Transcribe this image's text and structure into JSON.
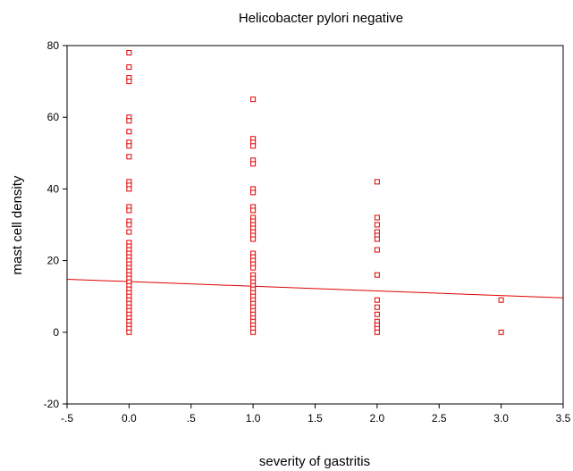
{
  "chart_data": {
    "type": "scatter",
    "title": "Helicobacter pylori negative",
    "xlabel": "severity of gastritis",
    "ylabel": "mast cell density",
    "xlim": [
      -0.5,
      3.5
    ],
    "ylim": [
      -20,
      80
    ],
    "x_ticks": [
      {
        "value": -0.5,
        "label": "-.5"
      },
      {
        "value": 0.0,
        "label": "0.0"
      },
      {
        "value": 0.5,
        "label": ".5"
      },
      {
        "value": 1.0,
        "label": "1.0"
      },
      {
        "value": 1.5,
        "label": "1.5"
      },
      {
        "value": 2.0,
        "label": "2.0"
      },
      {
        "value": 2.5,
        "label": "2.5"
      },
      {
        "value": 3.0,
        "label": "3.0"
      },
      {
        "value": 3.5,
        "label": "3.5"
      }
    ],
    "y_ticks": [
      {
        "value": -20,
        "label": "-20"
      },
      {
        "value": 0,
        "label": "0"
      },
      {
        "value": 20,
        "label": "20"
      },
      {
        "value": 40,
        "label": "40"
      },
      {
        "value": 60,
        "label": "60"
      },
      {
        "value": 80,
        "label": "80"
      }
    ],
    "grid": false,
    "marker_color": "#e00000",
    "line_color": "#e00000",
    "points": [
      {
        "x": 0,
        "y": 78
      },
      {
        "x": 0,
        "y": 74
      },
      {
        "x": 0,
        "y": 71
      },
      {
        "x": 0,
        "y": 70
      },
      {
        "x": 0,
        "y": 60
      },
      {
        "x": 0,
        "y": 59
      },
      {
        "x": 0,
        "y": 56
      },
      {
        "x": 0,
        "y": 53
      },
      {
        "x": 0,
        "y": 52
      },
      {
        "x": 0,
        "y": 49
      },
      {
        "x": 0,
        "y": 42
      },
      {
        "x": 0,
        "y": 41
      },
      {
        "x": 0,
        "y": 40
      },
      {
        "x": 0,
        "y": 35
      },
      {
        "x": 0,
        "y": 34
      },
      {
        "x": 0,
        "y": 31
      },
      {
        "x": 0,
        "y": 30
      },
      {
        "x": 0,
        "y": 28
      },
      {
        "x": 0,
        "y": 25
      },
      {
        "x": 0,
        "y": 24
      },
      {
        "x": 0,
        "y": 23
      },
      {
        "x": 0,
        "y": 22
      },
      {
        "x": 0,
        "y": 21
      },
      {
        "x": 0,
        "y": 20
      },
      {
        "x": 0,
        "y": 19
      },
      {
        "x": 0,
        "y": 18
      },
      {
        "x": 0,
        "y": 17
      },
      {
        "x": 0,
        "y": 16
      },
      {
        "x": 0,
        "y": 15
      },
      {
        "x": 0,
        "y": 14
      },
      {
        "x": 0,
        "y": 13
      },
      {
        "x": 0,
        "y": 12
      },
      {
        "x": 0,
        "y": 11
      },
      {
        "x": 0,
        "y": 10
      },
      {
        "x": 0,
        "y": 9
      },
      {
        "x": 0,
        "y": 8
      },
      {
        "x": 0,
        "y": 7
      },
      {
        "x": 0,
        "y": 6
      },
      {
        "x": 0,
        "y": 5
      },
      {
        "x": 0,
        "y": 4
      },
      {
        "x": 0,
        "y": 3
      },
      {
        "x": 0,
        "y": 2
      },
      {
        "x": 0,
        "y": 1
      },
      {
        "x": 0,
        "y": 0
      },
      {
        "x": 1,
        "y": 65
      },
      {
        "x": 1,
        "y": 54
      },
      {
        "x": 1,
        "y": 53
      },
      {
        "x": 1,
        "y": 52
      },
      {
        "x": 1,
        "y": 48
      },
      {
        "x": 1,
        "y": 47
      },
      {
        "x": 1,
        "y": 40
      },
      {
        "x": 1,
        "y": 39
      },
      {
        "x": 1,
        "y": 35
      },
      {
        "x": 1,
        "y": 34
      },
      {
        "x": 1,
        "y": 32
      },
      {
        "x": 1,
        "y": 31
      },
      {
        "x": 1,
        "y": 30
      },
      {
        "x": 1,
        "y": 29
      },
      {
        "x": 1,
        "y": 28
      },
      {
        "x": 1,
        "y": 27
      },
      {
        "x": 1,
        "y": 26
      },
      {
        "x": 1,
        "y": 22
      },
      {
        "x": 1,
        "y": 21
      },
      {
        "x": 1,
        "y": 20
      },
      {
        "x": 1,
        "y": 19
      },
      {
        "x": 1,
        "y": 18
      },
      {
        "x": 1,
        "y": 16
      },
      {
        "x": 1,
        "y": 15
      },
      {
        "x": 1,
        "y": 14
      },
      {
        "x": 1,
        "y": 13
      },
      {
        "x": 1,
        "y": 12
      },
      {
        "x": 1,
        "y": 11
      },
      {
        "x": 1,
        "y": 10
      },
      {
        "x": 1,
        "y": 9
      },
      {
        "x": 1,
        "y": 8
      },
      {
        "x": 1,
        "y": 7
      },
      {
        "x": 1,
        "y": 6
      },
      {
        "x": 1,
        "y": 5
      },
      {
        "x": 1,
        "y": 4
      },
      {
        "x": 1,
        "y": 3
      },
      {
        "x": 1,
        "y": 2
      },
      {
        "x": 1,
        "y": 1
      },
      {
        "x": 1,
        "y": 0
      },
      {
        "x": 2,
        "y": 42
      },
      {
        "x": 2,
        "y": 32
      },
      {
        "x": 2,
        "y": 30
      },
      {
        "x": 2,
        "y": 28
      },
      {
        "x": 2,
        "y": 27
      },
      {
        "x": 2,
        "y": 26
      },
      {
        "x": 2,
        "y": 23
      },
      {
        "x": 2,
        "y": 16
      },
      {
        "x": 2,
        "y": 9
      },
      {
        "x": 2,
        "y": 7
      },
      {
        "x": 2,
        "y": 5
      },
      {
        "x": 2,
        "y": 3
      },
      {
        "x": 2,
        "y": 2
      },
      {
        "x": 2,
        "y": 1
      },
      {
        "x": 2,
        "y": 0
      },
      {
        "x": 3,
        "y": 9
      },
      {
        "x": 3,
        "y": 0
      }
    ],
    "regression_line": {
      "x": [
        -0.5,
        3.5
      ],
      "y": [
        14.8,
        9.6
      ]
    }
  }
}
